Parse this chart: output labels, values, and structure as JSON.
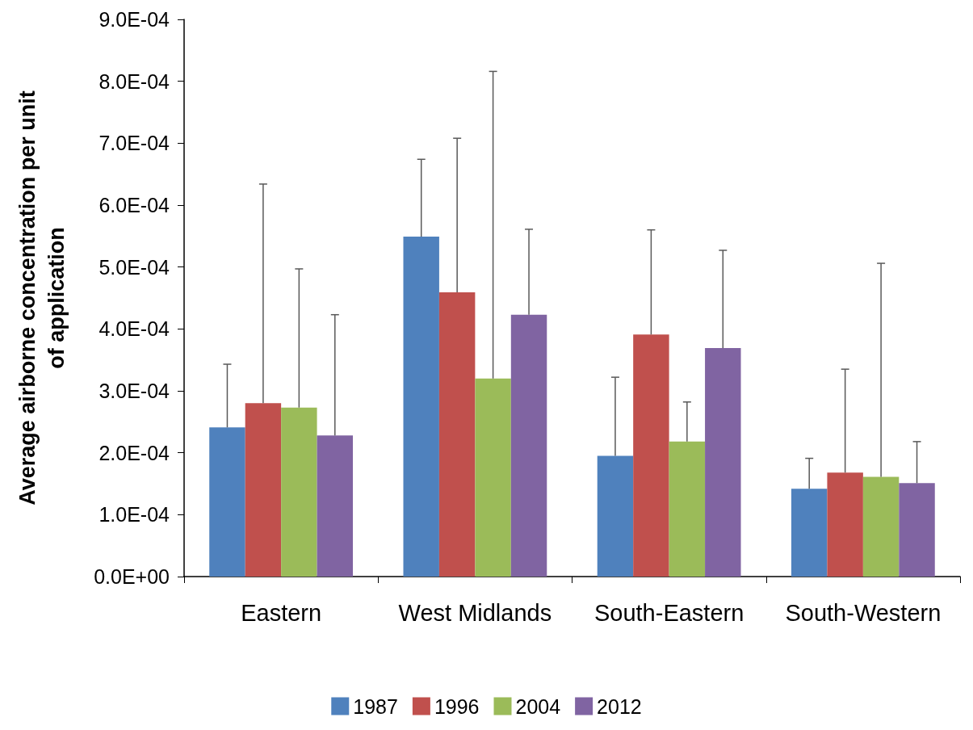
{
  "chart_data": {
    "type": "bar",
    "ylabel": "Average airborne concentration per unit of application",
    "categories": [
      "Eastern",
      "West Midlands",
      "South-Eastern",
      "South-Western"
    ],
    "series": [
      {
        "name": "1987",
        "color": "#4f81bd",
        "values": [
          0.000241,
          0.000549,
          0.000195,
          0.000142
        ],
        "errors": [
          [
            0.000241,
            0.000343
          ],
          [
            0.000549,
            0.000674
          ],
          [
            0.000195,
            0.000322
          ],
          [
            0.000142,
            0.000191
          ]
        ]
      },
      {
        "name": "1996",
        "color": "#c0504d",
        "values": [
          0.00028,
          0.000459,
          0.000391,
          0.000168
        ],
        "errors": [
          [
            0.00028,
            0.000634
          ],
          [
            0.000459,
            0.000708
          ],
          [
            0.000391,
            0.00056
          ],
          [
            0.000168,
            0.000335
          ]
        ]
      },
      {
        "name": "2004",
        "color": "#9bbb59",
        "values": [
          0.000273,
          0.00032,
          0.000218,
          0.000161
        ],
        "errors": [
          [
            0.000273,
            0.000497
          ],
          [
            0.00032,
            0.000816
          ],
          [
            0.000218,
            0.000282
          ],
          [
            0.000161,
            0.000506
          ]
        ]
      },
      {
        "name": "2012",
        "color": "#8064a2",
        "values": [
          0.000228,
          0.000423,
          0.000369,
          0.000151
        ],
        "errors": [
          [
            0.000228,
            0.000423
          ],
          [
            0.000423,
            0.000561
          ],
          [
            0.000369,
            0.000527
          ],
          [
            0.000151,
            0.000218
          ]
        ]
      }
    ],
    "ylim": [
      0,
      0.0009
    ],
    "yticks": [
      {
        "value": 0,
        "label": "0.0E+00"
      },
      {
        "value": 0.0001,
        "label": "1.0E-04"
      },
      {
        "value": 0.0002,
        "label": "2.0E-04"
      },
      {
        "value": 0.0003,
        "label": "3.0E-04"
      },
      {
        "value": 0.0004,
        "label": "4.0E-04"
      },
      {
        "value": 0.0005,
        "label": "5.0E-04"
      },
      {
        "value": 0.0006,
        "label": "6.0E-04"
      },
      {
        "value": 0.0007,
        "label": "7.0E-04"
      },
      {
        "value": 0.0008,
        "label": "8.0E-04"
      },
      {
        "value": 0.0009,
        "label": "9.0E-04"
      }
    ],
    "grid": false,
    "legend": "bottom"
  }
}
